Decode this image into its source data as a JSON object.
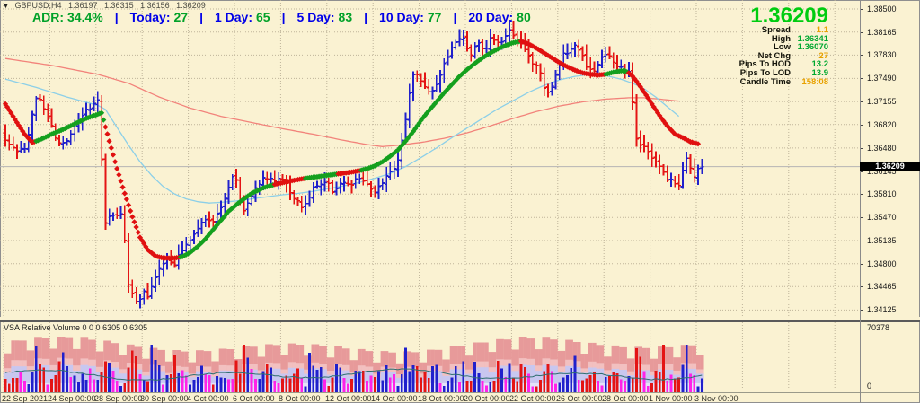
{
  "colors": {
    "background": "#FAF2D2",
    "grid": "#BFB49A",
    "bar_up": "#2020CC",
    "bar_down": "#E41414",
    "dot_up": "#14A01E",
    "dot_down": "#E01010",
    "ma_slow": "#F2837B",
    "ma_fast": "#8CCFE8",
    "current_price_line": "#B5B5B5",
    "price_tag_bg": "#000000",
    "price_tag_text": "#FFFFFF",
    "adr_label_blue": "#0000E8",
    "adr_value_green": "#00A128",
    "big_price_green": "#00CC10",
    "value_orange": "#E8A200",
    "value_green": "#00A830",
    "vol_band_outer": "#E79A9A",
    "vol_band_mid": "#F2C0C0",
    "vol_band_inner": "#C8C7F0",
    "vol_band_base": "#E4E3F8",
    "vol_bar_neutral": "#FF22E8",
    "vol_ma_line": "#2E6F6F"
  },
  "header": {
    "marker": "▼",
    "symbol": "GBPUSD,H4",
    "open": "1.36197",
    "high": "1.36315",
    "low": "1.36156",
    "close": "1.36209"
  },
  "adr": {
    "separator": "|",
    "items": [
      {
        "label": "ADR:",
        "value": "34.4%"
      },
      {
        "label": "Today:",
        "value": "27"
      },
      {
        "label": "1 Day:",
        "value": "65"
      },
      {
        "label": "5 Day:",
        "value": "83"
      },
      {
        "label": "10 Day:",
        "value": "77"
      },
      {
        "label": "20 Day:",
        "value": "80"
      }
    ]
  },
  "info_panel": {
    "price": "1.36209",
    "rows": [
      {
        "label": "Spread",
        "value": "1.1",
        "tone": "orange"
      },
      {
        "label": "High",
        "value": "1.36341",
        "tone": "green"
      },
      {
        "label": "Low",
        "value": "1.36070",
        "tone": "green"
      },
      {
        "label": "Net Chg",
        "value": "27",
        "tone": "orange"
      },
      {
        "label": "Pips To HOD",
        "value": "13.2",
        "tone": "green"
      },
      {
        "label": "Pips To LOD",
        "value": "13.9",
        "tone": "green"
      },
      {
        "label": "Candle Time",
        "value": "158:08",
        "tone": "orange"
      }
    ]
  },
  "volume_panel": {
    "label": "VSA Relative Volume 0 0 0 6305 0 6305",
    "axis_max": "70378",
    "axis_min": "0"
  },
  "chart_data": {
    "type": "candlestick",
    "symbol": "GBPUSD",
    "timeframe": "H4",
    "title": "GBPUSD,H4 1.36197 1.36315 1.36156 1.36209",
    "price_axis_labels": [
      "1.38500",
      "1.38165",
      "1.37830",
      "1.37490",
      "1.37155",
      "1.36820",
      "1.36480",
      "1.36145",
      "1.35810",
      "1.35470",
      "1.35135",
      "1.34800",
      "1.34465",
      "1.34125"
    ],
    "date_axis_labels": [
      "22 Sep 2021",
      "24 Sep 00:00",
      "28 Sep 00:00",
      "30 Sep 00:00",
      "4 Oct 00:00",
      "6 Oct 00:00",
      "8 Oct 00:00",
      "12 Oct 00:00",
      "14 Oct 00:00",
      "18 Oct 00:00",
      "20 Oct 00:00",
      "22 Oct 00:00",
      "26 Oct 00:00",
      "28 Oct 00:00",
      "1 Nov 00:00",
      "3 Nov 00:00"
    ],
    "price_top": 1.385,
    "price_bottom": 1.34125,
    "current_price": 1.36209,
    "candle_count": 182,
    "candles_per_gridline": 12,
    "close_path": [
      [
        0,
        1.3665
      ],
      [
        2,
        1.365
      ],
      [
        4,
        1.3642
      ],
      [
        6,
        1.3652
      ],
      [
        8,
        1.3712
      ],
      [
        9,
        1.3725
      ],
      [
        11,
        1.37
      ],
      [
        13,
        1.3668
      ],
      [
        15,
        1.3652
      ],
      [
        17,
        1.366
      ],
      [
        19,
        1.3685
      ],
      [
        21,
        1.37
      ],
      [
        23,
        1.3712
      ],
      [
        25,
        1.372
      ],
      [
        26,
        1.3532
      ],
      [
        28,
        1.3556
      ],
      [
        30,
        1.3546
      ],
      [
        31,
        1.356
      ],
      [
        32,
        1.3458
      ],
      [
        33,
        1.344
      ],
      [
        34,
        1.3426
      ],
      [
        35,
        1.3418
      ],
      [
        36,
        1.3448
      ],
      [
        37,
        1.343
      ],
      [
        38,
        1.3442
      ],
      [
        40,
        1.347
      ],
      [
        42,
        1.3488
      ],
      [
        44,
        1.3476
      ],
      [
        46,
        1.35
      ],
      [
        48,
        1.3512
      ],
      [
        50,
        1.3528
      ],
      [
        52,
        1.3542
      ],
      [
        54,
        1.3538
      ],
      [
        56,
        1.356
      ],
      [
        58,
        1.3582
      ],
      [
        60,
        1.3612
      ],
      [
        61,
        1.358
      ],
      [
        62,
        1.3552
      ],
      [
        64,
        1.3575
      ],
      [
        66,
        1.3595
      ],
      [
        68,
        1.3605
      ],
      [
        70,
        1.3598
      ],
      [
        72,
        1.3605
      ],
      [
        74,
        1.359
      ],
      [
        76,
        1.3572
      ],
      [
        78,
        1.3558
      ],
      [
        80,
        1.3585
      ],
      [
        82,
        1.3598
      ],
      [
        84,
        1.3602
      ],
      [
        86,
        1.3582
      ],
      [
        88,
        1.3602
      ],
      [
        90,
        1.3595
      ],
      [
        92,
        1.3608
      ],
      [
        94,
        1.36
      ],
      [
        96,
        1.3582
      ],
      [
        98,
        1.3595
      ],
      [
        100,
        1.361
      ],
      [
        102,
        1.3622
      ],
      [
        104,
        1.3668
      ],
      [
        106,
        1.3745
      ],
      [
        107,
        1.3762
      ],
      [
        109,
        1.3742
      ],
      [
        111,
        1.373
      ],
      [
        113,
        1.3748
      ],
      [
        115,
        1.3778
      ],
      [
        117,
        1.38
      ],
      [
        119,
        1.3812
      ],
      [
        121,
        1.3782
      ],
      [
        123,
        1.38
      ],
      [
        125,
        1.3788
      ],
      [
        127,
        1.3812
      ],
      [
        129,
        1.3795
      ],
      [
        131,
        1.3822
      ],
      [
        133,
        1.3808
      ],
      [
        135,
        1.38
      ],
      [
        137,
        1.3775
      ],
      [
        139,
        1.3762
      ],
      [
        141,
        1.3728
      ],
      [
        143,
        1.3745
      ],
      [
        145,
        1.378
      ],
      [
        147,
        1.3792
      ],
      [
        149,
        1.3798
      ],
      [
        151,
        1.3772
      ],
      [
        153,
        1.3758
      ],
      [
        155,
        1.3778
      ],
      [
        157,
        1.3788
      ],
      [
        159,
        1.3772
      ],
      [
        161,
        1.3764
      ],
      [
        162,
        1.3758
      ],
      [
        163,
        1.3756
      ],
      [
        164,
        1.3662
      ],
      [
        166,
        1.365
      ],
      [
        168,
        1.3638
      ],
      [
        170,
        1.3626
      ],
      [
        172,
        1.3606
      ],
      [
        174,
        1.3598
      ],
      [
        176,
        1.3597
      ],
      [
        177,
        1.364
      ],
      [
        179,
        1.3606
      ],
      [
        180,
        1.3612
      ],
      [
        181,
        1.36209
      ]
    ],
    "dots_path": [
      [
        0,
        1.3712
      ],
      [
        3,
        1.3685
      ],
      [
        5,
        1.3668
      ],
      [
        7,
        1.3656
      ],
      [
        9,
        1.366
      ],
      [
        12,
        1.3668
      ],
      [
        15,
        1.3675
      ],
      [
        18,
        1.3683
      ],
      [
        21,
        1.3691
      ],
      [
        24,
        1.3697
      ],
      [
        25,
        1.3699
      ],
      [
        27,
        1.3658
      ],
      [
        29,
        1.3618
      ],
      [
        31,
        1.3582
      ],
      [
        33,
        1.3548
      ],
      [
        35,
        1.3518
      ],
      [
        37,
        1.35
      ],
      [
        39,
        1.3491
      ],
      [
        41,
        1.3488
      ],
      [
        44,
        1.3488
      ],
      [
        46,
        1.349
      ],
      [
        48,
        1.3496
      ],
      [
        50,
        1.3505
      ],
      [
        52,
        1.3516
      ],
      [
        55,
        1.3536
      ],
      [
        58,
        1.3556
      ],
      [
        61,
        1.357
      ],
      [
        64,
        1.3582
      ],
      [
        67,
        1.359
      ],
      [
        70,
        1.3595
      ],
      [
        74,
        1.36
      ],
      [
        78,
        1.3604
      ],
      [
        82,
        1.3607
      ],
      [
        86,
        1.361
      ],
      [
        90,
        1.3613
      ],
      [
        92,
        1.3615
      ],
      [
        94,
        1.3618
      ],
      [
        96,
        1.3622
      ],
      [
        98,
        1.3628
      ],
      [
        100,
        1.3636
      ],
      [
        102,
        1.3645
      ],
      [
        104,
        1.3658
      ],
      [
        106,
        1.3672
      ],
      [
        108,
        1.3688
      ],
      [
        110,
        1.3702
      ],
      [
        112,
        1.3715
      ],
      [
        114,
        1.3728
      ],
      [
        116,
        1.374
      ],
      [
        118,
        1.3752
      ],
      [
        120,
        1.3762
      ],
      [
        122,
        1.3771
      ],
      [
        124,
        1.3779
      ],
      [
        126,
        1.3786
      ],
      [
        128,
        1.3792
      ],
      [
        130,
        1.3797
      ],
      [
        132,
        1.3801
      ],
      [
        134,
        1.3803
      ],
      [
        136,
        1.3799
      ],
      [
        138,
        1.3793
      ],
      [
        140,
        1.3786
      ],
      [
        142,
        1.3779
      ],
      [
        144,
        1.3772
      ],
      [
        146,
        1.3766
      ],
      [
        148,
        1.3761
      ],
      [
        150,
        1.3757
      ],
      [
        152,
        1.3755
      ],
      [
        154,
        1.3754
      ],
      [
        156,
        1.3755
      ],
      [
        158,
        1.3758
      ],
      [
        160,
        1.376
      ],
      [
        161,
        1.376
      ],
      [
        162,
        1.3757
      ],
      [
        163,
        1.3752
      ],
      [
        164,
        1.3745
      ],
      [
        165,
        1.3737
      ],
      [
        166,
        1.3729
      ],
      [
        168,
        1.3712
      ],
      [
        170,
        1.3695
      ],
      [
        172,
        1.368
      ],
      [
        174,
        1.3668
      ],
      [
        176,
        1.3663
      ],
      [
        178,
        1.3657
      ],
      [
        180,
        1.3654
      ]
    ],
    "dots_trend_segments": [
      {
        "start": 0,
        "end": 7.5,
        "dir": "down"
      },
      {
        "start": 7.5,
        "end": 25.5,
        "dir": "up"
      },
      {
        "start": 25.5,
        "end": 45,
        "dir": "down"
      },
      {
        "start": 45,
        "end": 69.5,
        "dir": "up"
      },
      {
        "start": 69.5,
        "end": 77.5,
        "dir": "down"
      },
      {
        "start": 77.5,
        "end": 86,
        "dir": "up"
      },
      {
        "start": 86,
        "end": 92,
        "dir": "down"
      },
      {
        "start": 92,
        "end": 133.5,
        "dir": "up"
      },
      {
        "start": 133.5,
        "end": 155.5,
        "dir": "down"
      },
      {
        "start": 155.5,
        "end": 161.5,
        "dir": "up"
      },
      {
        "start": 161.5,
        "end": 180,
        "dir": "down"
      }
    ],
    "ma_slow_path": [
      [
        0,
        1.3778
      ],
      [
        12,
        1.3768
      ],
      [
        24,
        1.3755
      ],
      [
        32,
        1.3742
      ],
      [
        40,
        1.3722
      ],
      [
        48,
        1.3706
      ],
      [
        56,
        1.3694
      ],
      [
        64,
        1.3685
      ],
      [
        72,
        1.3676
      ],
      [
        80,
        1.3668
      ],
      [
        88,
        1.3659
      ],
      [
        94,
        1.3653
      ],
      [
        98,
        1.365
      ],
      [
        102,
        1.3652
      ],
      [
        108,
        1.3656
      ],
      [
        114,
        1.3662
      ],
      [
        120,
        1.367
      ],
      [
        126,
        1.368
      ],
      [
        132,
        1.3691
      ],
      [
        138,
        1.3701
      ],
      [
        144,
        1.3709
      ],
      [
        150,
        1.3715
      ],
      [
        156,
        1.3719
      ],
      [
        162,
        1.3721
      ],
      [
        166,
        1.3721
      ],
      [
        170,
        1.3719
      ],
      [
        175,
        1.3716
      ]
    ],
    "ma_fast_path": [
      [
        0,
        1.3748
      ],
      [
        8,
        1.3736
      ],
      [
        16,
        1.3722
      ],
      [
        24,
        1.371
      ],
      [
        26,
        1.3704
      ],
      [
        29,
        1.3678
      ],
      [
        32,
        1.3652
      ],
      [
        35,
        1.3628
      ],
      [
        38,
        1.3608
      ],
      [
        41,
        1.3592
      ],
      [
        44,
        1.3581
      ],
      [
        47,
        1.3574
      ],
      [
        50,
        1.357
      ],
      [
        53,
        1.3568
      ],
      [
        56,
        1.3569
      ],
      [
        60,
        1.3571
      ],
      [
        64,
        1.3574
      ],
      [
        68,
        1.3577
      ],
      [
        72,
        1.358
      ],
      [
        76,
        1.3582
      ],
      [
        80,
        1.3585
      ],
      [
        84,
        1.3589
      ],
      [
        88,
        1.3593
      ],
      [
        92,
        1.3598
      ],
      [
        96,
        1.3604
      ],
      [
        100,
        1.3611
      ],
      [
        104,
        1.3621
      ],
      [
        108,
        1.3634
      ],
      [
        112,
        1.3648
      ],
      [
        116,
        1.3663
      ],
      [
        120,
        1.3677
      ],
      [
        124,
        1.3691
      ],
      [
        128,
        1.3705
      ],
      [
        132,
        1.3717
      ],
      [
        136,
        1.3729
      ],
      [
        140,
        1.3739
      ],
      [
        144,
        1.3747
      ],
      [
        148,
        1.3752
      ],
      [
        152,
        1.3755
      ],
      [
        156,
        1.3753
      ],
      [
        160,
        1.3748
      ],
      [
        163,
        1.3742
      ],
      [
        166,
        1.3734
      ],
      [
        169,
        1.3722
      ],
      [
        172,
        1.3708
      ],
      [
        175,
        1.3694
      ]
    ],
    "volume": {
      "axis_max": 70378,
      "session_slots_per_day": 6,
      "spike_indices": [
        8,
        15,
        26,
        27,
        33,
        34,
        38,
        44,
        60,
        62,
        79,
        104,
        106,
        107,
        119,
        131,
        141,
        148,
        164,
        171,
        177
      ]
    }
  }
}
